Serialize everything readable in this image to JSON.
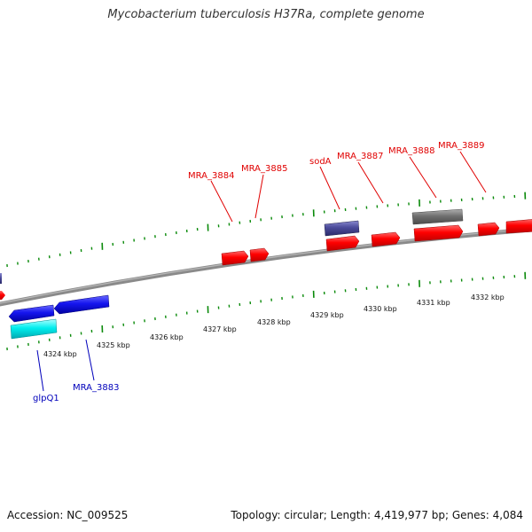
{
  "title": "Mycobacterium tuberculosis H37Ra, complete genome",
  "footer": {
    "accession": "Accession: NC_009525",
    "summary": "Topology: circular; Length: 4,419,977 bp; Genes: 4,084"
  },
  "colors": {
    "forward_gene": "#ff0000",
    "reverse_gene": "#1010e0",
    "rna_gene": "#00e5ee",
    "pseudogene_grey": "#707070",
    "misc_feature": "#4b4b9a",
    "backbone": "#8a8a8a",
    "ticks": "#0a8a0a",
    "forward_label": "#e00000",
    "reverse_label": "#0000bb"
  },
  "scale": {
    "unit": "kbp",
    "labels": [
      "4324 kbp",
      "4325 kbp",
      "4326 kbp",
      "4327 kbp",
      "4328 kbp",
      "4329 kbp",
      "4330 kbp",
      "4331 kbp",
      "4332 kbp"
    ]
  },
  "gene_labels": {
    "forward": [
      "MRA_3884",
      "MRA_3885",
      "sodA",
      "MRA_3887",
      "MRA_3888",
      "MRA_3889"
    ],
    "reverse": [
      "glpQ1",
      "MRA_3883"
    ]
  }
}
